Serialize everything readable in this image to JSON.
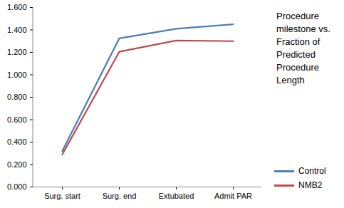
{
  "chart_data": {
    "type": "line",
    "title": "Procedure milestone vs. Fraction of Predicted Procedure Length",
    "categories": [
      "Surg. start",
      "Surg. end",
      "Extubated",
      "Admit PAR"
    ],
    "series": [
      {
        "name": "Control",
        "color": "#4a7ebb",
        "values": [
          0.32,
          1.325,
          1.41,
          1.45
        ]
      },
      {
        "name": "NMB2",
        "color": "#be4b48",
        "values": [
          0.29,
          1.205,
          1.305,
          1.3
        ]
      }
    ],
    "ylim": [
      0,
      1.6
    ],
    "yticks": [
      {
        "value": 0,
        "label": "0.000"
      },
      {
        "value": 0.2,
        "label": "0.200"
      },
      {
        "value": 0.4,
        "label": "0.400"
      },
      {
        "value": 0.6,
        "label": "0.600"
      },
      {
        "value": 0.8,
        "label": "0.800"
      },
      {
        "value": 1.0,
        "label": "1.000"
      },
      {
        "value": 1.2,
        "label": "1.200"
      },
      {
        "value": 1.4,
        "label": "1.400"
      },
      {
        "value": 1.6,
        "label": "1.600"
      }
    ],
    "grid": false,
    "legend": "right"
  }
}
